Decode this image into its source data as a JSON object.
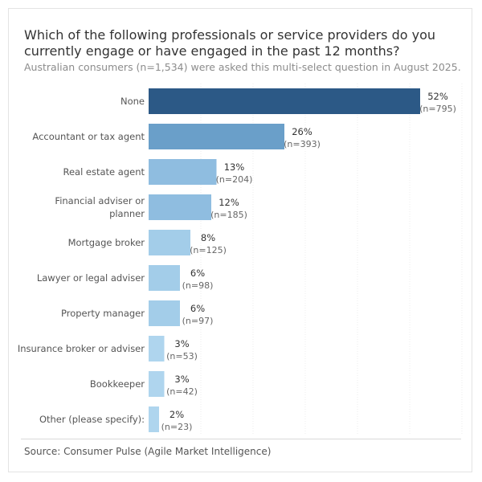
{
  "chart_data": {
    "type": "bar",
    "orientation": "horizontal",
    "title": "Which of the following professionals or service providers do you currently engage or have engaged in the past 12 months?",
    "subtitle": "Australian consumers (n=1,534) were asked this multi-select question in August 2025.",
    "source": "Source: Consumer Pulse (Agile Market Intelligence)",
    "categories": [
      [
        "None"
      ],
      [
        "Accountant or tax agent"
      ],
      [
        "Real estate agent"
      ],
      [
        "Financial adviser or",
        "planner"
      ],
      [
        "Mortgage broker"
      ],
      [
        "Lawyer or legal adviser"
      ],
      [
        "Property manager"
      ],
      [
        "Insurance broker or adviser"
      ],
      [
        "Bookkeeper"
      ],
      [
        "Other (please specify):"
      ]
    ],
    "values": [
      52,
      26,
      13,
      12,
      8,
      6,
      6,
      3,
      3,
      2
    ],
    "value_labels": [
      "52%",
      "26%",
      "13%",
      "12%",
      "8%",
      "6%",
      "6%",
      "3%",
      "3%",
      "2%"
    ],
    "counts": [
      "(n=795)",
      "(n=393)",
      "(n=204)",
      "(n=185)",
      "(n=125)",
      "(n=98)",
      "(n=97)",
      "(n=53)",
      "(n=42)",
      "(n=23)"
    ],
    "xlim": [
      0,
      60
    ],
    "grid": true,
    "colors": [
      "#2c5986",
      "#6a9fc9",
      "#8fbde0",
      "#8fbde0",
      "#a3cde9",
      "#a3cde9",
      "#a3cde9",
      "#afd5ee",
      "#afd5ee",
      "#afd5ee"
    ]
  }
}
